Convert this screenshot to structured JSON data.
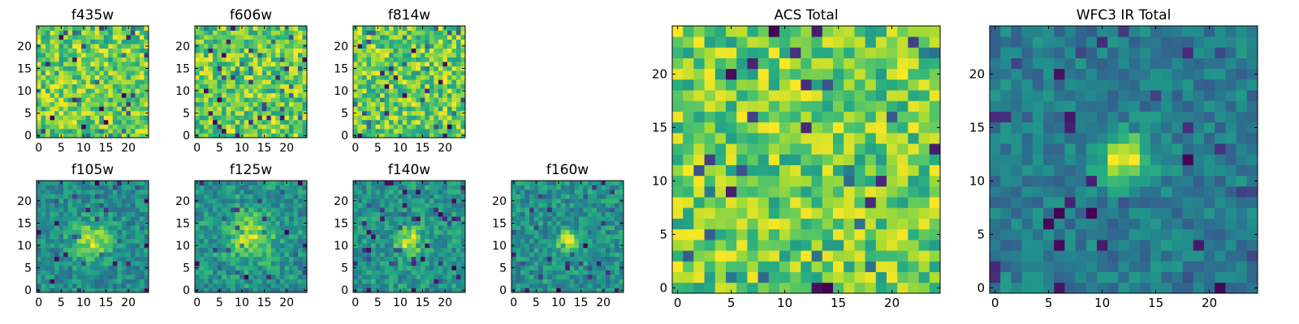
{
  "chart_data": [
    {
      "type": "heatmap",
      "id": "f435w",
      "title": "f435w",
      "xlim": [
        0,
        24
      ],
      "ylim": [
        0,
        24
      ],
      "xticks": [
        "0",
        "5",
        "10",
        "15",
        "20"
      ],
      "yticks": [
        "0",
        "5",
        "10",
        "15",
        "20"
      ],
      "colormap": "viridis",
      "source": "noise",
      "seed": 11
    },
    {
      "type": "heatmap",
      "id": "f606w",
      "title": "f606w",
      "xlim": [
        0,
        24
      ],
      "ylim": [
        0,
        24
      ],
      "xticks": [
        "0",
        "5",
        "10",
        "15",
        "20"
      ],
      "yticks": [
        "0",
        "5",
        "10",
        "15",
        "20"
      ],
      "colormap": "viridis",
      "source": "noise",
      "seed": 23
    },
    {
      "type": "heatmap",
      "id": "f814w",
      "title": "f814w",
      "xlim": [
        0,
        24
      ],
      "ylim": [
        0,
        24
      ],
      "xticks": [
        "0",
        "5",
        "10",
        "15",
        "20"
      ],
      "yticks": [
        "0",
        "5",
        "10",
        "15",
        "20"
      ],
      "colormap": "viridis",
      "source": "noise",
      "seed": 37
    },
    {
      "type": "heatmap",
      "id": "f105w",
      "title": "f105w",
      "xlim": [
        0,
        24
      ],
      "ylim": [
        0,
        24
      ],
      "xticks": [
        "0",
        "5",
        "10",
        "15",
        "20"
      ],
      "yticks": [
        "0",
        "5",
        "10",
        "15",
        "20"
      ],
      "colormap": "viridis",
      "source": {
        "center": [
          12,
          11
        ],
        "sigma": 3.0,
        "amplitude": 0.45
      },
      "seed": 41
    },
    {
      "type": "heatmap",
      "id": "f125w",
      "title": "f125w",
      "xlim": [
        0,
        24
      ],
      "ylim": [
        0,
        24
      ],
      "xticks": [
        "0",
        "5",
        "10",
        "15",
        "20"
      ],
      "yticks": [
        "0",
        "5",
        "10",
        "15",
        "20"
      ],
      "colormap": "viridis",
      "source": {
        "center": [
          12,
          12
        ],
        "sigma": 3.5,
        "amplitude": 0.4
      },
      "seed": 53
    },
    {
      "type": "heatmap",
      "id": "f140w",
      "title": "f140w",
      "xlim": [
        0,
        24
      ],
      "ylim": [
        0,
        24
      ],
      "xticks": [
        "0",
        "5",
        "10",
        "15",
        "20"
      ],
      "yticks": [
        "0",
        "5",
        "10",
        "15",
        "20"
      ],
      "colormap": "viridis",
      "source": {
        "center": [
          12,
          11
        ],
        "sigma": 2.0,
        "amplitude": 0.5
      },
      "seed": 67
    },
    {
      "type": "heatmap",
      "id": "f160w",
      "title": "f160w",
      "xlim": [
        0,
        24
      ],
      "ylim": [
        0,
        24
      ],
      "xticks": [
        "0",
        "5",
        "10",
        "15",
        "20"
      ],
      "yticks": [
        "0",
        "5",
        "10",
        "15",
        "20"
      ],
      "colormap": "viridis",
      "source": {
        "center": [
          12,
          11
        ],
        "sigma": 1.4,
        "amplitude": 0.7
      },
      "seed": 79
    },
    {
      "type": "heatmap",
      "id": "acs_total",
      "title": "ACS Total",
      "xlim": [
        0,
        24
      ],
      "ylim": [
        0,
        24
      ],
      "xticks": [
        "0",
        "5",
        "10",
        "15",
        "20"
      ],
      "yticks": [
        "0",
        "5",
        "10",
        "15",
        "20"
      ],
      "colormap": "viridis",
      "source": "noise",
      "seed": 97
    },
    {
      "type": "heatmap",
      "id": "wfc3_ir_total",
      "title": "WFC3 IR Total",
      "xlim": [
        0,
        24
      ],
      "ylim": [
        0,
        24
      ],
      "xticks": [
        "0",
        "5",
        "10",
        "15",
        "20"
      ],
      "yticks": [
        "0",
        "5",
        "10",
        "15",
        "20"
      ],
      "colormap": "viridis",
      "source": {
        "center": [
          12,
          12
        ],
        "sigma": 1.6,
        "amplitude": 0.8
      },
      "seed": 101
    }
  ]
}
